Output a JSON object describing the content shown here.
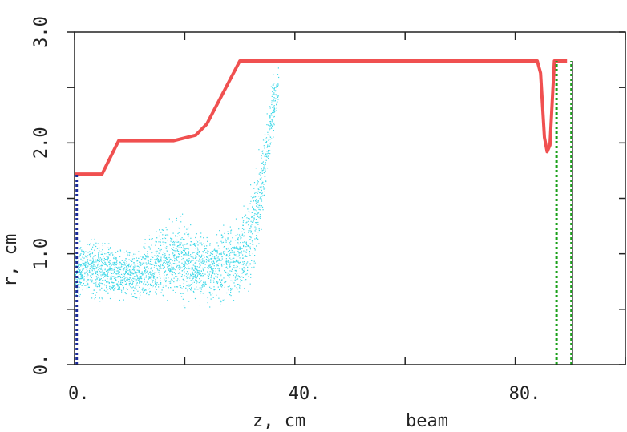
{
  "chart_data": {
    "type": "scatter",
    "xlabel": "z, cm",
    "ylabel": "r, cm",
    "annotation": "beam",
    "xlim": [
      0,
      100
    ],
    "ylim": [
      0,
      3.0
    ],
    "x_ticks": [
      0,
      20,
      40,
      60,
      80,
      100
    ],
    "y_ticks": [
      0,
      0.5,
      1.0,
      1.5,
      2.0,
      2.5,
      3.0
    ],
    "x_tick_labels": [
      {
        "value": 0,
        "label": "0."
      },
      {
        "value": 40,
        "label": "40."
      },
      {
        "value": 80,
        "label": "80."
      }
    ],
    "y_tick_labels": [
      {
        "value": 0,
        "label": "0."
      },
      {
        "value": 1.0,
        "label": "1.0"
      },
      {
        "value": 2.0,
        "label": "2.0"
      },
      {
        "value": 3.0,
        "label": "3.0"
      }
    ],
    "grid": false,
    "boundary": {
      "color": "#f05050",
      "x": [
        0,
        5,
        8,
        18,
        22,
        24,
        30,
        84,
        84.6,
        85.3,
        85.8,
        86.3,
        87.1,
        89.4
      ],
      "y": [
        1.72,
        1.72,
        2.02,
        2.02,
        2.07,
        2.17,
        2.74,
        2.74,
        2.63,
        2.05,
        1.92,
        1.98,
        2.74,
        2.74
      ]
    },
    "scatter_cloud": {
      "color": "#40d8e8",
      "envelope_z": [
        0,
        2,
        5,
        8,
        10,
        12,
        14,
        16,
        18,
        20,
        22,
        24,
        26,
        28,
        30,
        32,
        33,
        34,
        35,
        36,
        37
      ],
      "envelope_rmin": [
        0.52,
        0.52,
        0.5,
        0.52,
        0.55,
        0.5,
        0.48,
        0.5,
        0.5,
        0.45,
        0.5,
        0.48,
        0.43,
        0.48,
        0.52,
        0.62,
        0.82,
        1.15,
        1.55,
        1.95,
        2.3
      ],
      "envelope_rmax": [
        1.15,
        1.22,
        1.22,
        1.12,
        1.08,
        1.12,
        1.28,
        1.38,
        1.38,
        1.44,
        1.28,
        1.26,
        1.32,
        1.4,
        1.45,
        1.75,
        1.95,
        2.2,
        2.45,
        2.68,
        2.78
      ]
    },
    "markers": [
      {
        "name": "blue-dotted",
        "color": "#1a2a9a",
        "x": 0.4,
        "y_range": [
          0,
          1.72
        ]
      },
      {
        "name": "green-dotted-1",
        "color": "#19a019",
        "x": 87.5,
        "y_range": [
          0,
          2.74
        ]
      },
      {
        "name": "green-dotted-2",
        "color": "#19a019",
        "x": 90.2,
        "y_range": [
          0,
          2.74
        ]
      },
      {
        "name": "black-end",
        "color": "#111111",
        "x": 90.4,
        "y_range": [
          0,
          2.74
        ]
      }
    ]
  }
}
